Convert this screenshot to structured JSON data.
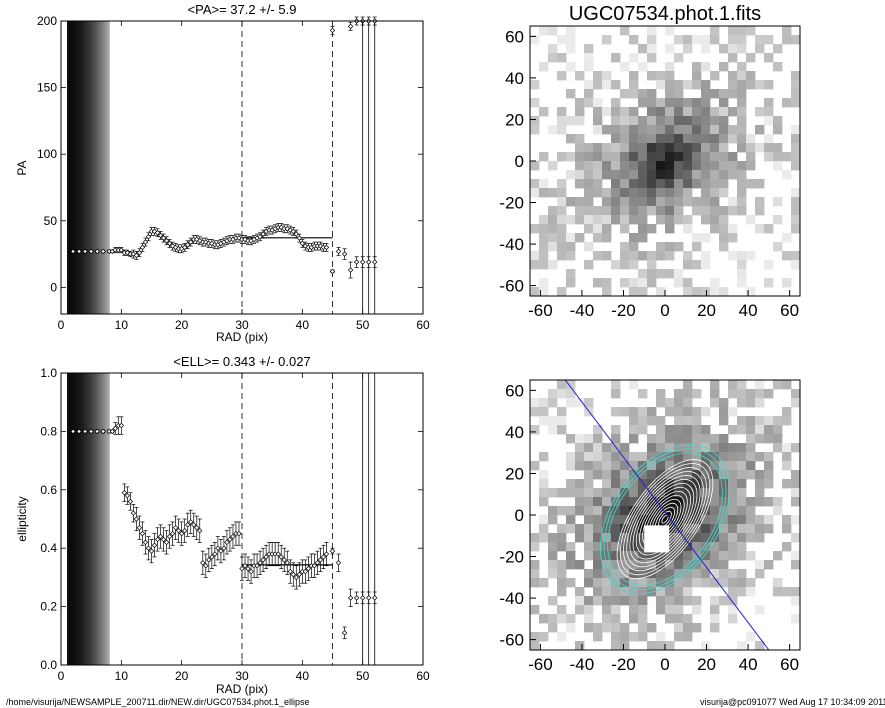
{
  "footer": {
    "left": "/home/visurija/NEWSAMPLE_200711.dir/NEW.dir/UGC07534.phot.1_ellipse",
    "right": "visurija@pc091077  Wed Aug 17 10:34:09 2011"
  },
  "colors": {
    "contour_outer": "#40e0d0",
    "contour_inner": "#ffffff",
    "major_axis": "#2020cc",
    "markers": "#000000"
  },
  "chart_data": [
    {
      "type": "scatter",
      "title": "<PA>=  37.2 +/-   5.9",
      "xlabel": "RAD (pix)",
      "ylabel": "PA",
      "xlim": [
        0,
        60
      ],
      "ylim": [
        -20,
        200
      ],
      "xticks": [
        "0",
        "10",
        "20",
        "30",
        "40",
        "50",
        "60"
      ],
      "yticks": [
        "0",
        "50",
        "100",
        "150",
        "200"
      ],
      "mean_line": {
        "value": 37.2,
        "x_range": [
          30,
          45
        ]
      },
      "dashed_lines_x": [
        30,
        45
      ],
      "solid_lines_x": [
        50,
        51,
        52
      ],
      "shaded_band_x": [
        1,
        8
      ],
      "grid": false,
      "x": [
        2,
        3,
        4,
        5,
        6,
        7,
        8,
        8.5,
        9,
        9.5,
        10,
        10.5,
        11,
        11.5,
        12,
        12.5,
        13,
        13.5,
        14,
        14.5,
        15,
        15.5,
        16,
        16.5,
        17,
        17.5,
        18,
        18.5,
        19,
        19.5,
        20,
        20.5,
        21,
        21.5,
        22,
        22.5,
        23,
        23.5,
        24,
        24.5,
        25,
        25.5,
        26,
        26.5,
        27,
        27.5,
        28,
        28.5,
        29,
        29.5,
        30,
        30.5,
        31,
        31.5,
        32,
        32.5,
        33,
        33.5,
        34,
        34.5,
        35,
        35.5,
        36,
        36.5,
        37,
        37.5,
        38,
        38.5,
        39,
        39.5,
        40,
        40.5,
        41,
        41.5,
        42,
        42.5,
        43,
        43.5,
        44,
        45,
        46,
        47,
        48,
        49,
        50,
        51,
        52
      ],
      "y": [
        27,
        27,
        27,
        27,
        27,
        27,
        27,
        27,
        28,
        28,
        28,
        26,
        26,
        25,
        25,
        24,
        26,
        30,
        34,
        38,
        42,
        42,
        41,
        39,
        37,
        35,
        33,
        31,
        30,
        29,
        29,
        30,
        32,
        34,
        36,
        36,
        35,
        34,
        34,
        33,
        33,
        32,
        32,
        33,
        34,
        35,
        36,
        36,
        37,
        37,
        36,
        36,
        35,
        35,
        36,
        37,
        38,
        40,
        42,
        43,
        43,
        44,
        45,
        45,
        44,
        44,
        43,
        42,
        40,
        37,
        33,
        31,
        30,
        30,
        31,
        31,
        31,
        30,
        30,
        12,
        27,
        25,
        13,
        19,
        19,
        19,
        19
      ],
      "err": [
        1,
        1,
        1,
        1,
        1,
        1,
        1,
        1,
        2,
        2,
        2,
        2,
        2,
        2,
        3,
        3,
        3,
        3,
        3,
        3,
        3,
        3,
        3,
        3,
        3,
        3,
        3,
        3,
        3,
        3,
        3,
        3,
        3,
        3,
        3,
        3,
        3,
        3,
        3,
        3,
        3,
        3,
        3,
        3,
        3,
        3,
        3,
        3,
        3,
        3,
        3,
        3,
        3,
        3,
        3,
        3,
        3,
        3,
        3,
        3,
        3,
        3,
        3,
        3,
        3,
        3,
        3,
        3,
        3,
        3,
        3,
        3,
        3,
        3,
        3,
        3,
        3,
        3,
        3,
        1,
        3,
        4,
        6,
        4,
        4,
        4,
        4
      ],
      "offscale_points": [
        {
          "x": 45,
          "y": 193
        },
        {
          "x": 48,
          "y": 196
        },
        {
          "x": 49,
          "y": 200
        },
        {
          "x": 50,
          "y": 200
        },
        {
          "x": 51,
          "y": 200
        },
        {
          "x": 52,
          "y": 200
        }
      ]
    },
    {
      "type": "scatter",
      "title": "<ELL>= 0.343 +/-  0.027",
      "xlabel": "RAD (pix)",
      "ylabel": "ellipticity",
      "xlim": [
        0,
        60
      ],
      "ylim": [
        0,
        1
      ],
      "xticks": [
        "0",
        "10",
        "20",
        "30",
        "40",
        "50",
        "60"
      ],
      "yticks": [
        "0.0",
        "0.2",
        "0.4",
        "0.6",
        "0.8",
        "1.0"
      ],
      "mean_line": {
        "value": 0.343,
        "x_range": [
          30,
          45
        ]
      },
      "dashed_lines_x": [
        30,
        45
      ],
      "solid_lines_x": [
        50,
        51,
        52
      ],
      "shaded_band_x": [
        1,
        8
      ],
      "grid": false,
      "x": [
        2,
        3,
        4,
        5,
        6,
        7,
        8,
        8.5,
        9,
        9.5,
        10,
        10.5,
        11,
        11.5,
        12,
        12.5,
        13,
        13.5,
        14,
        14.5,
        15,
        15.5,
        16,
        16.5,
        17,
        17.5,
        18,
        18.5,
        19,
        19.5,
        20,
        20.5,
        21,
        21.5,
        22,
        22.5,
        23,
        23.5,
        24,
        24.5,
        25,
        25.5,
        26,
        26.5,
        27,
        27.5,
        28,
        28.5,
        29,
        29.5,
        30,
        30.5,
        31,
        31.5,
        32,
        32.5,
        33,
        33.5,
        34,
        34.5,
        35,
        35.5,
        36,
        36.5,
        37,
        37.5,
        38,
        38.5,
        39,
        39.5,
        40,
        40.5,
        41,
        41.5,
        42,
        42.5,
        43,
        43.5,
        44,
        45,
        46,
        47,
        48,
        49,
        50,
        51,
        52
      ],
      "y": [
        0.8,
        0.8,
        0.8,
        0.8,
        0.8,
        0.8,
        0.8,
        0.8,
        0.81,
        0.82,
        0.82,
        0.59,
        0.58,
        0.56,
        0.52,
        0.5,
        0.47,
        0.45,
        0.42,
        0.4,
        0.39,
        0.41,
        0.43,
        0.44,
        0.43,
        0.42,
        0.44,
        0.45,
        0.47,
        0.46,
        0.45,
        0.46,
        0.48,
        0.49,
        0.48,
        0.47,
        0.46,
        0.35,
        0.34,
        0.36,
        0.37,
        0.38,
        0.4,
        0.39,
        0.4,
        0.42,
        0.43,
        0.44,
        0.45,
        0.45,
        0.33,
        0.34,
        0.33,
        0.32,
        0.34,
        0.34,
        0.35,
        0.36,
        0.37,
        0.38,
        0.38,
        0.38,
        0.38,
        0.37,
        0.36,
        0.35,
        0.32,
        0.31,
        0.3,
        0.31,
        0.32,
        0.32,
        0.33,
        0.34,
        0.34,
        0.35,
        0.36,
        0.37,
        0.38,
        0.39,
        0.35,
        0.11,
        0.23,
        0.23,
        0.23,
        0.23,
        0.23
      ],
      "err": [
        0.005,
        0.005,
        0.005,
        0.005,
        0.005,
        0.005,
        0.005,
        0.005,
        0.02,
        0.03,
        0.03,
        0.03,
        0.03,
        0.03,
        0.03,
        0.04,
        0.04,
        0.04,
        0.04,
        0.04,
        0.04,
        0.04,
        0.04,
        0.04,
        0.04,
        0.04,
        0.04,
        0.04,
        0.04,
        0.04,
        0.04,
        0.04,
        0.04,
        0.04,
        0.04,
        0.04,
        0.04,
        0.04,
        0.04,
        0.04,
        0.04,
        0.04,
        0.04,
        0.04,
        0.04,
        0.04,
        0.04,
        0.04,
        0.04,
        0.04,
        0.04,
        0.04,
        0.04,
        0.04,
        0.04,
        0.04,
        0.04,
        0.04,
        0.04,
        0.04,
        0.04,
        0.04,
        0.04,
        0.04,
        0.04,
        0.04,
        0.04,
        0.04,
        0.04,
        0.04,
        0.04,
        0.04,
        0.04,
        0.04,
        0.04,
        0.04,
        0.04,
        0.04,
        0.04,
        0.01,
        0.03,
        0.02,
        0.03,
        0.02,
        0.02,
        0.02,
        0.02
      ]
    },
    {
      "type": "heatmap",
      "title": "UGC07534.phot.1.fits",
      "xlim": [
        -65,
        65
      ],
      "ylim": [
        -65,
        65
      ],
      "xticks": [
        "-60",
        "-40",
        "-20",
        "0",
        "20",
        "40",
        "60"
      ],
      "yticks": [
        "-60",
        "-40",
        "-20",
        "0",
        "20",
        "40",
        "60"
      ],
      "colormap": "inverted-grayscale",
      "overlays": []
    },
    {
      "type": "heatmap",
      "title": "",
      "xlim": [
        -65,
        65
      ],
      "ylim": [
        -65,
        65
      ],
      "xticks": [
        "-60",
        "-40",
        "-20",
        "0",
        "20",
        "40",
        "60"
      ],
      "yticks": [
        "-60",
        "-40",
        "-20",
        "0",
        "20",
        "40",
        "60"
      ],
      "colormap": "inverted-grayscale",
      "overlays": [
        "ellipse-isophotes",
        "major-axis-line"
      ]
    }
  ]
}
